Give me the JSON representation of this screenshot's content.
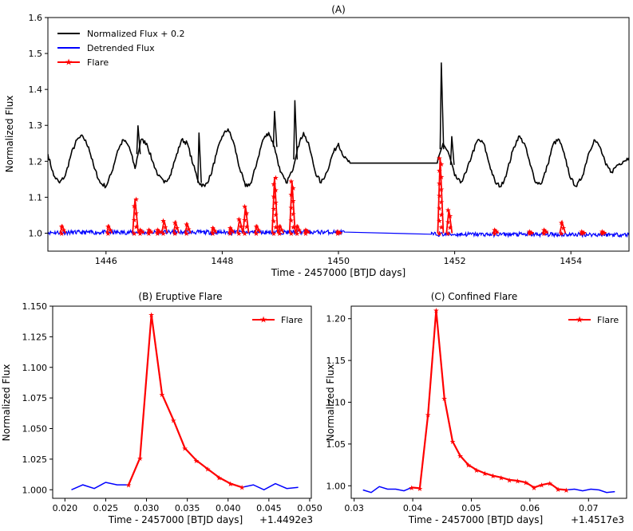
{
  "chart_data": [
    {
      "id": "A",
      "type": "line",
      "title": "(A)",
      "xlabel": "Time - 2457000 [BTJD days]",
      "ylabel": "Normalized Flux",
      "xlim": [
        1445.0,
        1455.0
      ],
      "ylim": [
        0.95,
        1.6
      ],
      "xticks": [
        1446,
        1448,
        1450,
        1452,
        1454
      ],
      "xtick_labels": [
        "1446",
        "1448",
        "1450",
        "1452",
        "1454"
      ],
      "yticks": [
        1.0,
        1.1,
        1.2,
        1.3,
        1.4,
        1.5,
        1.6
      ],
      "ytick_labels": [
        "1.0",
        "1.1",
        "1.2",
        "1.3",
        "1.4",
        "1.5",
        "1.6"
      ],
      "legend": {
        "position": "top-left",
        "entries": [
          {
            "label": "Normalized Flux + 0.2",
            "color": "#000000",
            "marker": "none"
          },
          {
            "label": "Detrended Flux",
            "color": "#0000ff",
            "marker": "none"
          },
          {
            "label": "Flare",
            "color": "#ff0000",
            "marker": "star"
          }
        ]
      },
      "series": [
        {
          "name": "Normalized Flux + 0.2",
          "color": "#000000",
          "x": [
            1445.0,
            1445.1,
            1445.2,
            1445.3,
            1445.4,
            1445.5,
            1445.6,
            1445.7,
            1445.8,
            1445.9,
            1446.0,
            1446.1,
            1446.2,
            1446.3,
            1446.4,
            1446.5,
            1446.6,
            1446.7,
            1446.8,
            1446.9,
            1447.0,
            1447.1,
            1447.2,
            1447.3,
            1447.4,
            1447.5,
            1447.6,
            1447.7,
            1447.8,
            1447.9,
            1448.0,
            1448.1,
            1448.2,
            1448.3,
            1448.4,
            1448.5,
            1448.6,
            1448.7,
            1448.8,
            1448.9,
            1449.0,
            1449.1,
            1449.2,
            1449.3,
            1449.4,
            1449.5,
            1449.6,
            1449.7,
            1449.8,
            1449.9,
            1450.0,
            1450.1,
            1450.2,
            1451.7,
            1451.8,
            1451.9,
            1452.0,
            1452.1,
            1452.2,
            1452.3,
            1452.4,
            1452.5,
            1452.6,
            1452.7,
            1452.8,
            1452.9,
            1453.0,
            1453.1,
            1453.2,
            1453.3,
            1453.4,
            1453.5,
            1453.6,
            1453.7,
            1453.8,
            1453.9,
            1454.0,
            1454.1,
            1454.2,
            1454.3,
            1454.4,
            1454.5,
            1454.6,
            1454.7,
            1454.8,
            1454.9,
            1455.0
          ],
          "y": [
            1.22,
            1.16,
            1.14,
            1.16,
            1.22,
            1.26,
            1.27,
            1.24,
            1.18,
            1.14,
            1.13,
            1.17,
            1.23,
            1.26,
            1.24,
            1.18,
            1.26,
            1.25,
            1.2,
            1.16,
            1.14,
            1.16,
            1.21,
            1.26,
            1.25,
            1.19,
            1.14,
            1.13,
            1.16,
            1.22,
            1.27,
            1.29,
            1.25,
            1.18,
            1.13,
            1.14,
            1.2,
            1.26,
            1.28,
            1.24,
            1.17,
            1.14,
            1.17,
            1.24,
            1.28,
            1.24,
            1.17,
            1.14,
            1.17,
            1.22,
            1.25,
            1.21,
            1.195,
            1.195,
            1.25,
            1.22,
            1.16,
            1.14,
            1.17,
            1.22,
            1.26,
            1.25,
            1.19,
            1.14,
            1.13,
            1.17,
            1.23,
            1.27,
            1.25,
            1.19,
            1.14,
            1.14,
            1.19,
            1.25,
            1.26,
            1.21,
            1.15,
            1.13,
            1.16,
            1.22,
            1.26,
            1.24,
            1.19,
            1.17,
            1.19,
            1.2,
            1.21
          ],
          "gaps_after": [
            1450.2
          ],
          "spikes": [
            {
              "x": 1446.55,
              "y": 1.3
            },
            {
              "x": 1447.6,
              "y": 1.28
            },
            {
              "x": 1448.9,
              "y": 1.34
            },
            {
              "x": 1449.25,
              "y": 1.37
            },
            {
              "x": 1451.77,
              "y": 1.475
            },
            {
              "x": 1451.95,
              "y": 1.27
            }
          ]
        },
        {
          "name": "Detrended Flux",
          "color": "#0000ff",
          "x": [
            1445.0,
            1450.1,
            1451.6,
            1455.0
          ],
          "y": [
            1.002,
            1.003,
            0.997,
            0.996
          ]
        },
        {
          "name": "Flare",
          "color": "#ff0000",
          "flares": [
            {
              "x": 1445.25,
              "peak": 1.02
            },
            {
              "x": 1446.05,
              "peak": 1.02
            },
            {
              "x": 1446.5,
              "peak": 1.095
            },
            {
              "x": 1446.6,
              "peak": 1.01
            },
            {
              "x": 1446.75,
              "peak": 1.01
            },
            {
              "x": 1446.9,
              "peak": 1.01
            },
            {
              "x": 1447.0,
              "peak": 1.035
            },
            {
              "x": 1447.2,
              "peak": 1.03
            },
            {
              "x": 1447.4,
              "peak": 1.025
            },
            {
              "x": 1447.85,
              "peak": 1.015
            },
            {
              "x": 1448.15,
              "peak": 1.015
            },
            {
              "x": 1448.3,
              "peak": 1.04
            },
            {
              "x": 1448.4,
              "peak": 1.075
            },
            {
              "x": 1448.6,
              "peak": 1.02
            },
            {
              "x": 1448.9,
              "peak": 1.155
            },
            {
              "x": 1449.0,
              "peak": 1.02
            },
            {
              "x": 1449.2,
              "peak": 1.145
            },
            {
              "x": 1449.3,
              "peak": 1.02
            },
            {
              "x": 1449.45,
              "peak": 1.01
            },
            {
              "x": 1450.0,
              "peak": 1.005
            },
            {
              "x": 1451.75,
              "peak": 1.21
            },
            {
              "x": 1451.9,
              "peak": 1.065
            },
            {
              "x": 1452.7,
              "peak": 1.01
            },
            {
              "x": 1453.3,
              "peak": 1.005
            },
            {
              "x": 1453.55,
              "peak": 1.01
            },
            {
              "x": 1453.85,
              "peak": 1.03
            },
            {
              "x": 1454.2,
              "peak": 1.005
            },
            {
              "x": 1454.55,
              "peak": 1.005
            }
          ]
        }
      ]
    },
    {
      "id": "B",
      "type": "line",
      "title": "(B) Eruptive Flare",
      "xlabel": "Time - 2457000 [BTJD days]",
      "offset_label": "+1.4492e3",
      "ylabel": "Normalized Flux",
      "xlim": [
        0.0185,
        0.0502
      ],
      "ylim": [
        0.993,
        1.15
      ],
      "xticks": [
        0.02,
        0.025,
        0.03,
        0.035,
        0.04,
        0.045,
        0.05
      ],
      "xtick_labels": [
        "0.020",
        "0.025",
        "0.030",
        "0.035",
        "0.040",
        "0.045",
        "0.050"
      ],
      "yticks": [
        1.0,
        1.025,
        1.05,
        1.075,
        1.1,
        1.125,
        1.15
      ],
      "ytick_labels": [
        "1.000",
        "1.025",
        "1.050",
        "1.075",
        "1.100",
        "1.125",
        "1.150"
      ],
      "legend": {
        "position": "top-right",
        "entries": [
          {
            "label": "Flare",
            "color": "#ff0000",
            "marker": "star"
          }
        ]
      },
      "series": [
        {
          "name": "Detrended Flux",
          "color": "#0000ff",
          "x": [
            0.0208,
            0.0222,
            0.0236,
            0.025,
            0.0264,
            0.0278,
            0.0292,
            0.0306,
            0.0319,
            0.0333,
            0.0347,
            0.0361,
            0.0375,
            0.0389,
            0.0403,
            0.0417,
            0.0431,
            0.0444,
            0.0458,
            0.0472,
            0.0486
          ],
          "y": [
            1.0,
            1.004,
            1.001,
            1.006,
            1.004,
            1.004,
            1.026,
            1.143,
            1.078,
            1.057,
            1.034,
            1.024,
            1.017,
            1.01,
            1.005,
            1.002,
            1.004,
            1.0,
            1.005,
            1.001,
            1.002
          ]
        },
        {
          "name": "Flare",
          "color": "#ff0000",
          "x": [
            0.0278,
            0.0292,
            0.0306,
            0.0319,
            0.0333,
            0.0347,
            0.0361,
            0.0375,
            0.0389,
            0.0403,
            0.0417
          ],
          "y": [
            1.004,
            1.026,
            1.143,
            1.078,
            1.057,
            1.034,
            1.024,
            1.017,
            1.01,
            1.005,
            1.002
          ]
        }
      ]
    },
    {
      "id": "C",
      "type": "line",
      "title": "(C) Confined Flare",
      "xlabel": "Time - 2457000 [BTJD days]",
      "offset_label": "+1.4517e3",
      "ylabel": "Normalized Flux",
      "xlim": [
        0.0295,
        0.0765
      ],
      "ylim": [
        0.985,
        1.215
      ],
      "xticks": [
        0.03,
        0.04,
        0.05,
        0.06,
        0.07
      ],
      "xtick_labels": [
        "0.03",
        "0.04",
        "0.05",
        "0.06",
        "0.07"
      ],
      "yticks": [
        1.0,
        1.05,
        1.1,
        1.15,
        1.2
      ],
      "ytick_labels": [
        "1.00",
        "1.05",
        "1.10",
        "1.15",
        "1.20"
      ],
      "legend": {
        "position": "top-right",
        "entries": [
          {
            "label": "Flare",
            "color": "#ff0000",
            "marker": "star"
          }
        ]
      },
      "series": [
        {
          "name": "Detrended Flux",
          "color": "#0000ff",
          "x": [
            0.0315,
            0.0329,
            0.0343,
            0.0357,
            0.0371,
            0.0385,
            0.0398,
            0.0412,
            0.0426,
            0.044,
            0.0454,
            0.0468,
            0.0481,
            0.0495,
            0.0509,
            0.0523,
            0.0537,
            0.0551,
            0.0565,
            0.0579,
            0.0593,
            0.0607,
            0.062,
            0.0634,
            0.0648,
            0.0662,
            0.0676,
            0.069,
            0.0704,
            0.0718,
            0.0731,
            0.0745
          ],
          "y": [
            0.995,
            0.992,
            0.999,
            0.996,
            0.996,
            0.994,
            0.998,
            0.997,
            1.085,
            1.21,
            1.105,
            1.053,
            1.036,
            1.025,
            1.019,
            1.015,
            1.012,
            1.01,
            1.007,
            1.006,
            1.004,
            0.998,
            1.001,
            1.003,
            0.996,
            0.995,
            0.996,
            0.994,
            0.996,
            0.995,
            0.992,
            0.993
          ]
        },
        {
          "name": "Flare",
          "color": "#ff0000",
          "x": [
            0.0398,
            0.0412,
            0.0426,
            0.044,
            0.0454,
            0.0468,
            0.0481,
            0.0495,
            0.0509,
            0.0523,
            0.0537,
            0.0551,
            0.0565,
            0.0579,
            0.0593,
            0.0607,
            0.062,
            0.0634,
            0.0648,
            0.0662
          ],
          "y": [
            0.998,
            0.997,
            1.085,
            1.21,
            1.105,
            1.053,
            1.036,
            1.025,
            1.019,
            1.015,
            1.012,
            1.01,
            1.007,
            1.006,
            1.004,
            0.998,
            1.001,
            1.003,
            0.996,
            0.995
          ]
        }
      ]
    }
  ]
}
